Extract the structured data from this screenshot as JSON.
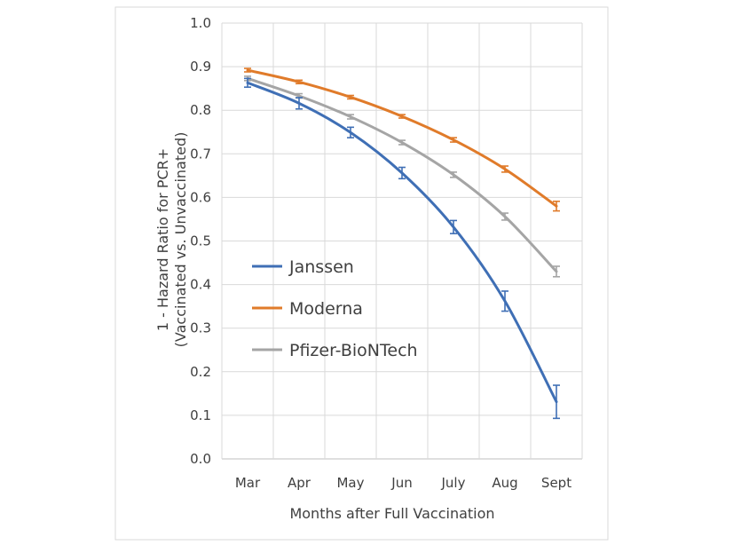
{
  "chart_data": {
    "type": "line",
    "title": "",
    "xlabel": "Months after Full Vaccination",
    "ylabel": [
      "1 - Hazard Ratio for PCR+",
      "(Vaccinated vs. Unvaccinated)"
    ],
    "categories": [
      "Mar",
      "Apr",
      "May",
      "Jun",
      "July",
      "Aug",
      "Sept"
    ],
    "ylim": [
      0.0,
      1.0
    ],
    "yticks": [
      "0.0",
      "0.1",
      "0.2",
      "0.3",
      "0.4",
      "0.5",
      "0.6",
      "0.7",
      "0.8",
      "0.9",
      "1.0"
    ],
    "ytick_values": [
      0,
      0.1,
      0.2,
      0.3,
      0.4,
      0.5,
      0.6,
      0.7,
      0.8,
      0.9,
      1.0
    ],
    "grid": true,
    "legend_position": "bottom-left inside plot",
    "series": [
      {
        "name": "Janssen",
        "color": "#3f6fb5",
        "values": [
          0.863,
          0.816,
          0.749,
          0.656,
          0.532,
          0.362,
          0.131
        ],
        "err": [
          0.01,
          0.013,
          0.012,
          0.013,
          0.015,
          0.023,
          0.038
        ]
      },
      {
        "name": "Moderna",
        "color": "#e07b2a",
        "values": [
          0.892,
          0.865,
          0.83,
          0.786,
          0.732,
          0.665,
          0.58
        ],
        "err": [
          0.004,
          0.004,
          0.004,
          0.004,
          0.005,
          0.007,
          0.011
        ]
      },
      {
        "name": "Pfizer-BioNTech",
        "color": "#a5a5a5",
        "values": [
          0.873,
          0.833,
          0.785,
          0.726,
          0.652,
          0.556,
          0.43
        ],
        "err": [
          0.005,
          0.005,
          0.005,
          0.005,
          0.006,
          0.008,
          0.012
        ]
      }
    ]
  }
}
